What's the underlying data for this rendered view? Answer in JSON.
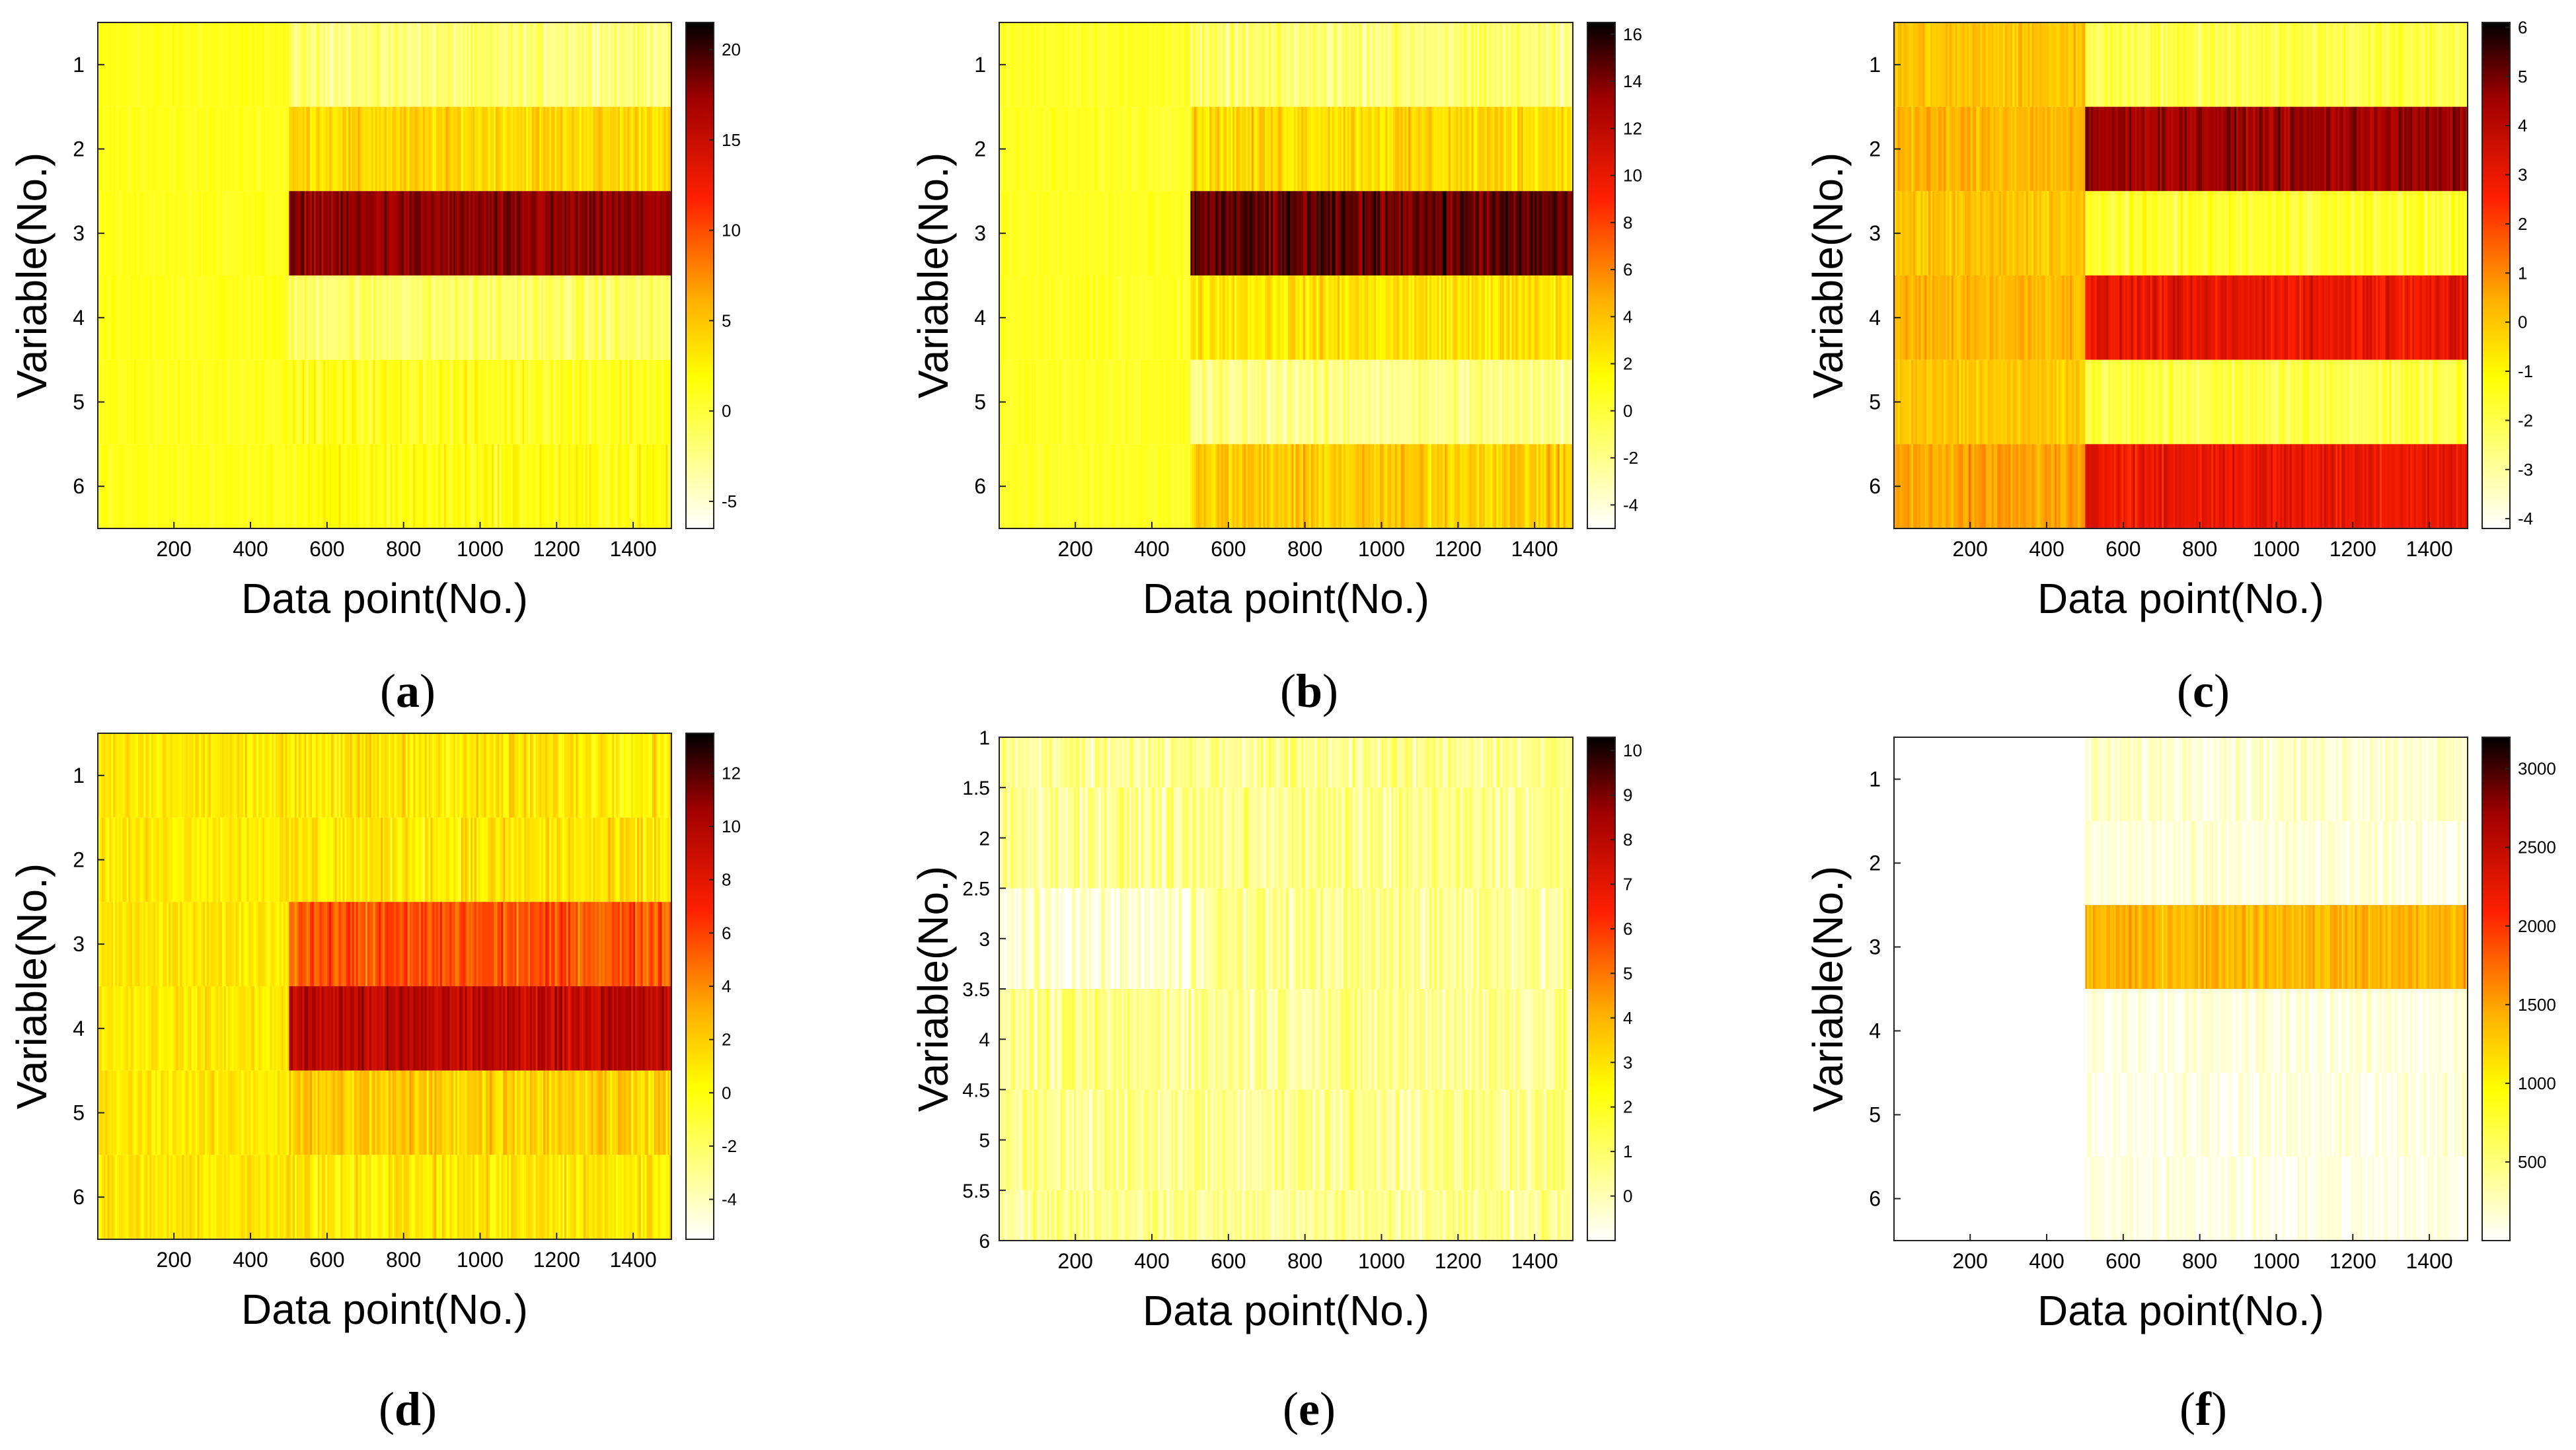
{
  "figure": {
    "xlabel": "Data point(No.)",
    "ylabel": "Variable(No.)",
    "x_tick_labels": [
      "200",
      "400",
      "600",
      "800",
      "1000",
      "1200",
      "1400"
    ]
  },
  "chart_data": [
    {
      "panel": "a",
      "type": "heatmap",
      "title": "",
      "xlabel": "Data point(No.)",
      "ylabel": "Variable(No.)",
      "xlim": [
        1,
        1500
      ],
      "x_ticks": [
        200,
        400,
        600,
        800,
        1000,
        1200,
        1400
      ],
      "rows": [
        "1",
        "2",
        "3",
        "4",
        "5",
        "6"
      ],
      "ylim": [
        0.5,
        6.5
      ],
      "colorbar": {
        "min": -6.5,
        "max": 21.5,
        "ticks": [
          "20",
          "15",
          "10",
          "5",
          "0",
          "-5"
        ],
        "tick_values": [
          20,
          15,
          10,
          5,
          0,
          -5
        ]
      },
      "segments": [
        {
          "x": [
            1,
            500
          ],
          "row_means": [
            1.0,
            1.0,
            1.0,
            1.0,
            1.0,
            1.0
          ],
          "spread": 0.8
        },
        {
          "x": [
            501,
            1500
          ],
          "row_means": [
            -2.0,
            4.0,
            17.5,
            -1.5,
            1.0,
            1.5
          ],
          "spread": 1.6
        }
      ]
    },
    {
      "panel": "b",
      "type": "heatmap",
      "title": "",
      "xlabel": "Data point(No.)",
      "ylabel": "Variable(No.)",
      "xlim": [
        1,
        1500
      ],
      "x_ticks": [
        200,
        400,
        600,
        800,
        1000,
        1200,
        1400
      ],
      "rows": [
        "1",
        "2",
        "3",
        "4",
        "5",
        "6"
      ],
      "ylim": [
        0.5,
        6.5
      ],
      "colorbar": {
        "min": -5,
        "max": 16.5,
        "ticks": [
          "16",
          "14",
          "12",
          "10",
          "8",
          "6",
          "4",
          "2",
          "0",
          "-2",
          "-4"
        ],
        "tick_values": [
          16,
          14,
          12,
          10,
          8,
          6,
          4,
          2,
          0,
          -2,
          -4
        ]
      },
      "segments": [
        {
          "x": [
            1,
            500
          ],
          "row_means": [
            0.5,
            0.5,
            0.5,
            0.5,
            0.5,
            0.5
          ],
          "spread": 0.6
        },
        {
          "x": [
            501,
            1500
          ],
          "row_means": [
            -1.5,
            3.0,
            14.5,
            2.5,
            -2.0,
            3.5
          ],
          "spread": 1.4
        }
      ]
    },
    {
      "panel": "c",
      "type": "heatmap",
      "title": "",
      "xlabel": "Data point(No.)",
      "ylabel": "Variable(No.)",
      "xlim": [
        1,
        1500
      ],
      "x_ticks": [
        200,
        400,
        600,
        800,
        1000,
        1200,
        1400
      ],
      "rows": [
        "1",
        "2",
        "3",
        "4",
        "5",
        "6"
      ],
      "ylim": [
        0.5,
        6.5
      ],
      "colorbar": {
        "min": -4.2,
        "max": 6.1,
        "ticks": [
          "6",
          "5",
          "4",
          "3",
          "2",
          "1",
          "0",
          "-1",
          "-2",
          "-3",
          "-4"
        ],
        "tick_values": [
          6,
          5,
          4,
          3,
          2,
          1,
          0,
          -1,
          -2,
          -3,
          -4
        ]
      },
      "segments": [
        {
          "x": [
            1,
            500
          ],
          "row_means": [
            0.0,
            0.3,
            0.0,
            0.3,
            0.0,
            0.6
          ],
          "spread": 0.5
        },
        {
          "x": [
            501,
            1500
          ],
          "row_means": [
            -2.0,
            4.5,
            -1.7,
            3.0,
            -2.0,
            3.0
          ],
          "spread": 0.6
        }
      ]
    },
    {
      "panel": "d",
      "type": "heatmap",
      "title": "",
      "xlabel": "Data point(No.)",
      "ylabel": "Variable(No.)",
      "xlim": [
        1,
        1500
      ],
      "x_ticks": [
        200,
        400,
        600,
        800,
        1000,
        1200,
        1400
      ],
      "rows": [
        "1",
        "2",
        "3",
        "4",
        "5",
        "6"
      ],
      "ylim": [
        0.5,
        6.5
      ],
      "colorbar": {
        "min": -5.5,
        "max": 13.5,
        "ticks": [
          "12",
          "10",
          "8",
          "6",
          "4",
          "2",
          "0",
          "-2",
          "-4"
        ],
        "tick_values": [
          12,
          10,
          8,
          6,
          4,
          2,
          0,
          -2,
          -4
        ]
      },
      "segments": [
        {
          "x": [
            1,
            500
          ],
          "row_means": [
            1.0,
            1.0,
            1.0,
            1.0,
            1.0,
            1.0
          ],
          "spread": 0.9
        },
        {
          "x": [
            501,
            1500
          ],
          "row_means": [
            1.0,
            1.0,
            5.5,
            9.5,
            2.0,
            1.0
          ],
          "spread": 1.4
        }
      ]
    },
    {
      "panel": "e",
      "type": "heatmap",
      "title": "",
      "xlabel": "Data point(No.)",
      "ylabel": "Variable(No.)",
      "xlim": [
        1,
        1500
      ],
      "x_ticks": [
        200,
        400,
        600,
        800,
        1000,
        1200,
        1400
      ],
      "y_ticks": [
        "1",
        "1.5",
        "2",
        "2.5",
        "3",
        "3.5",
        "4",
        "4.5",
        "5",
        "5.5",
        "6"
      ],
      "ylim": [
        1,
        6
      ],
      "row_bounds": [
        1,
        1.5,
        2.5,
        3.5,
        4.5,
        5.5,
        6
      ],
      "colorbar": {
        "min": -1,
        "max": 10.3,
        "ticks": [
          "10",
          "9",
          "8",
          "7",
          "6",
          "5",
          "4",
          "3",
          "2",
          "1",
          "0"
        ],
        "tick_values": [
          10,
          9,
          8,
          7,
          6,
          5,
          4,
          3,
          2,
          1,
          0
        ]
      },
      "segments": [
        {
          "x": [
            1,
            500
          ],
          "row_means": [
            0.5,
            0.5,
            -0.5,
            0.5,
            0.5,
            0.6
          ],
          "spread": 0.9
        },
        {
          "x": [
            501,
            1500
          ],
          "row_means": [
            0.5,
            0.5,
            0.5,
            0.5,
            0.5,
            0.5
          ],
          "spread": 0.9
        }
      ]
    },
    {
      "panel": "f",
      "type": "heatmap",
      "title": "",
      "xlabel": "Data point(No.)",
      "ylabel": "Variable(No.)",
      "xlim": [
        1,
        1500
      ],
      "x_ticks": [
        200,
        400,
        600,
        800,
        1000,
        1200,
        1400
      ],
      "rows": [
        "1",
        "2",
        "3",
        "4",
        "5",
        "6"
      ],
      "ylim": [
        0.5,
        6.5
      ],
      "colorbar": {
        "min": 0,
        "max": 3200,
        "ticks": [
          "3000",
          "2500",
          "2000",
          "1500",
          "1000",
          "500"
        ],
        "tick_values": [
          3000,
          2500,
          2000,
          1500,
          1000,
          500
        ]
      },
      "segments": [
        {
          "x": [
            1,
            500
          ],
          "row_means": [
            0,
            0,
            0,
            0,
            0,
            0
          ],
          "spread": 0
        },
        {
          "x": [
            501,
            1500
          ],
          "row_means": [
            200,
            120,
            1400,
            120,
            100,
            100
          ],
          "spread": 160
        }
      ]
    }
  ]
}
